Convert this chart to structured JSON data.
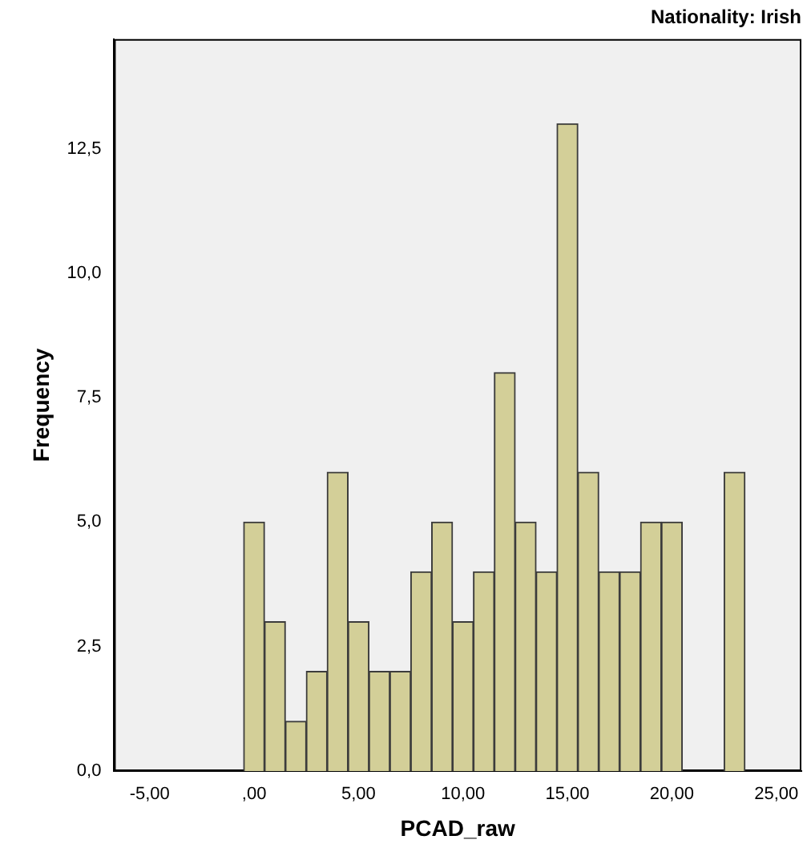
{
  "chart_data": {
    "type": "histogram",
    "title": "Nationality: Irish",
    "xlabel": "PCAD_raw",
    "ylabel": "Frequency",
    "bins": [
      -0.5,
      0.5,
      1.5,
      2.5,
      3.5,
      4.5,
      5.5,
      6.5,
      7.5,
      8.5,
      9.5,
      10.5,
      11.5,
      12.5,
      13.5,
      14.5,
      15.5,
      16.5,
      17.5,
      18.5,
      19.5,
      20.5,
      21.5,
      22.5,
      23.5
    ],
    "values": [
      5,
      3,
      1,
      2,
      6,
      3,
      2,
      2,
      4,
      5,
      3,
      4,
      8,
      5,
      4,
      13,
      6,
      4,
      4,
      5,
      5,
      0,
      0,
      6
    ],
    "color": "#d3cf98",
    "xlim": [
      -6.7,
      26.2
    ],
    "xticks": [
      {
        "value": -5,
        "label": "-5,00"
      },
      {
        "value": 0,
        "label": ",00"
      },
      {
        "value": 5,
        "label": "5,00"
      },
      {
        "value": 10,
        "label": "10,00"
      },
      {
        "value": 15,
        "label": "15,00"
      },
      {
        "value": 20,
        "label": "20,00"
      },
      {
        "value": 25,
        "label": "25,00"
      }
    ],
    "ylim": [
      0,
      14.7
    ],
    "yticks": [
      {
        "value": 0,
        "label": "0,0"
      },
      {
        "value": 2.5,
        "label": "2,5"
      },
      {
        "value": 5,
        "label": "5,0"
      },
      {
        "value": 7.5,
        "label": "7,5"
      },
      {
        "value": 10,
        "label": "10,0"
      },
      {
        "value": 12.5,
        "label": "12,5"
      }
    ],
    "grid": false,
    "legend": false
  }
}
